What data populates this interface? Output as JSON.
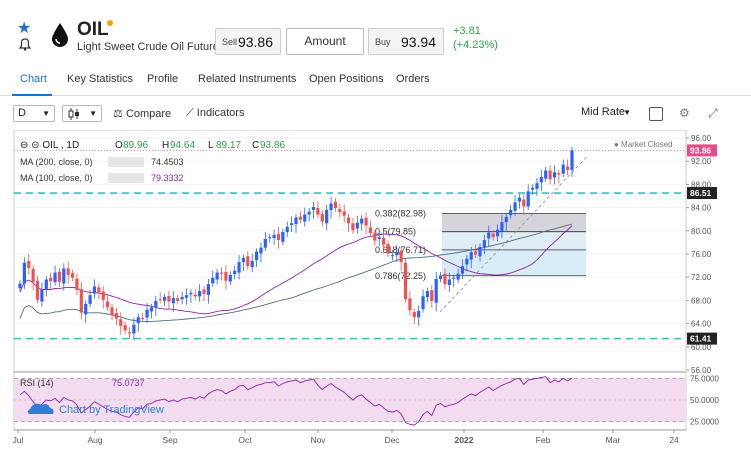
{
  "header": {
    "symbol": "OIL",
    "name": "Light Sweet Crude Oil Futures",
    "sell_label": "Sell",
    "sell_price": "93.86",
    "amount_label": "Amount",
    "buy_label": "Buy",
    "buy_price": "93.94",
    "change": "+3.81",
    "change_pct": "(+4.23%)",
    "icons": [
      "star-icon",
      "bell-icon",
      "oil-drop-icon"
    ],
    "status_dot_color": "#f0a500"
  },
  "tabs": [
    {
      "label": "Chart",
      "active": true
    },
    {
      "label": "Key Statistics"
    },
    {
      "label": "Profile"
    },
    {
      "label": "Related Instruments"
    },
    {
      "label": "Open Positions"
    },
    {
      "label": "Orders"
    }
  ],
  "toolbar": {
    "interval": "D",
    "chart_type_icon": "candlestick-icon",
    "compare": "Compare",
    "indicators": "Indicators",
    "price_type": "Mid Rate",
    "icons": [
      "checkbox-icon",
      "gear-icon",
      "fullscreen-icon"
    ]
  },
  "chart_data": {
    "type": "candlestick",
    "legend": {
      "symbol": "OIL",
      "interval": "1D",
      "open_label": "O",
      "open": "89.96",
      "high_label": "H",
      "high": "94.64",
      "low_label": "L",
      "low": "89.17",
      "close_label": "C",
      "close": "93.86"
    },
    "ma200": {
      "label": "MA (200, close, 0)",
      "value": "74.4503",
      "color": "#546e7a"
    },
    "ma100": {
      "label": "MA (100, close, 0)",
      "value": "79.3332",
      "color": "#8e24aa"
    },
    "market_status": "Market Closed",
    "ylim": [
      56,
      96
    ],
    "y_ticks": [
      "96.00",
      "92.00",
      "88.00",
      "84.00",
      "80.00",
      "76.00",
      "72.00",
      "68.00",
      "64.00",
      "60.00",
      "56.00"
    ],
    "x_labels": [
      "Jul",
      "Aug",
      "Sep",
      "Oct",
      "Nov",
      "Dec",
      "2022",
      "Feb",
      "Mar",
      "24"
    ],
    "price_tags": [
      {
        "value": "93.86",
        "color": "#e84a8a"
      },
      {
        "value": "86.51",
        "color": "#222222"
      },
      {
        "value": "61.41",
        "color": "#222222"
      }
    ],
    "fib_levels": [
      {
        "ratio": "0.382",
        "price": "82.98",
        "text": "0.382(82.98)"
      },
      {
        "ratio": "0.5",
        "price": "79.85",
        "text": "0.5(79.85)"
      },
      {
        "ratio": "0.618",
        "price": "76.71",
        "text": "0.618(76.71)"
      },
      {
        "ratio": "0.786",
        "price": "72.25",
        "text": "0.786(72.25)"
      }
    ],
    "horizontal_lines": [
      86.51,
      61.41
    ],
    "closes": [
      70.9,
      74.5,
      73.6,
      71.2,
      68.1,
      69.9,
      71.6,
      71.3,
      72.8,
      71.2,
      73.5,
      72.4,
      71.9,
      69.8,
      65.9,
      67.4,
      68.9,
      70.4,
      69.4,
      68.1,
      66.8,
      65.5,
      64.9,
      63.6,
      62.8,
      62.3,
      63.8,
      65.1,
      64.9,
      66.4,
      66.8,
      67.9,
      68.1,
      68.6,
      67.8,
      68.4,
      67.9,
      68.6,
      68.9,
      69.3,
      68.7,
      69.6,
      69.1,
      70.8,
      71.9,
      72.8,
      72.6,
      71.4,
      72.4,
      73.1,
      74.6,
      75.3,
      73.9,
      74.8,
      76.4,
      77.1,
      78.6,
      78.9,
      79.3,
      78.4,
      79.8,
      80.7,
      81.3,
      82.3,
      81.9,
      82.8,
      83.3,
      84.1,
      82.8,
      81.6,
      83.6,
      84.7,
      83.9,
      83.2,
      82.6,
      81.3,
      80.1,
      81.4,
      82.1,
      80.9,
      79.6,
      78.3,
      78.9,
      77.6,
      76.1,
      75.8,
      76.3,
      74.6,
      68.2,
      66.3,
      65.1,
      66.2,
      68.7,
      69.6,
      67.9,
      71.7,
      72.3,
      70.8,
      71.6,
      71.9,
      72.6,
      73.9,
      75.2,
      76.3,
      75.9,
      77.2,
      78.4,
      79.7,
      78.9,
      80.2,
      81.5,
      82.4,
      83.6,
      84.9,
      85.7,
      84.2,
      86.8,
      87.4,
      88.2,
      89.3,
      90.4,
      88.9,
      90.1,
      89.7,
      91.4,
      90.5,
      93.86
    ],
    "rsi": {
      "label": "RSI (14)",
      "value": "75.0737",
      "y_ticks": [
        "75.0000",
        "50.0000",
        "25.0000"
      ],
      "values": [
        56,
        60,
        55,
        48,
        42,
        45,
        50,
        49,
        52,
        47,
        53,
        50,
        49,
        44,
        35,
        39,
        43,
        48,
        45,
        42,
        39,
        37,
        36,
        33,
        31,
        30,
        36,
        41,
        40,
        45,
        46,
        49,
        50,
        51,
        48,
        50,
        48,
        51,
        52,
        53,
        51,
        54,
        52,
        57,
        60,
        62,
        61,
        57,
        60,
        62,
        66,
        67,
        62,
        64,
        67,
        68,
        70,
        70,
        71,
        66,
        69,
        71,
        72,
        73,
        70,
        72,
        73,
        74,
        67,
        62,
        66,
        69,
        65,
        62,
        59,
        54,
        50,
        54,
        56,
        51,
        47,
        43,
        45,
        41,
        37,
        36,
        38,
        34,
        24,
        22,
        21,
        25,
        33,
        37,
        32,
        44,
        46,
        42,
        44,
        45,
        47,
        51,
        54,
        57,
        55,
        59,
        62,
        65,
        61,
        64,
        67,
        69,
        71,
        74,
        75,
        68,
        73,
        74,
        75,
        76,
        77,
        70,
        73,
        71,
        75,
        72,
        75
      ]
    }
  },
  "watermark": "Chart by TradingView"
}
